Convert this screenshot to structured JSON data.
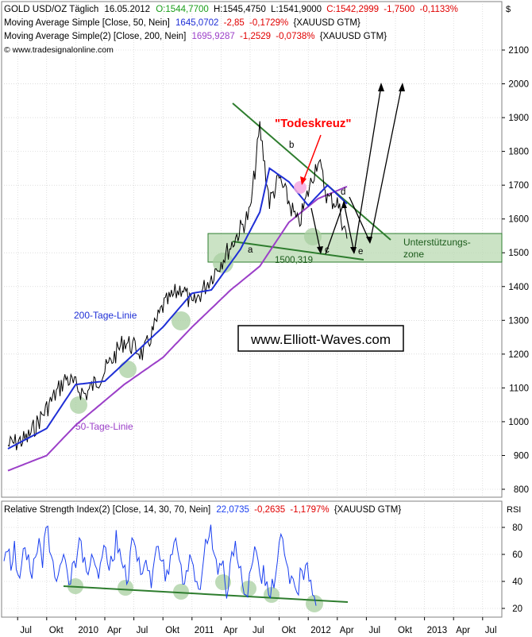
{
  "header": {
    "symbol": "GOLD USD/OZ Täglich",
    "date": "16.05.2012",
    "open": "O:1544,7700",
    "high": "H:1545,4750",
    "low": "L:1541,9000",
    "close": "C:1542,2999",
    "change": "-1,7500",
    "change_pct": "-0,1133%",
    "ma50_label": "Moving Average Simple [Close, 50, Nein]",
    "ma50_value": "1645,0702",
    "ma50_change": "-2,85",
    "ma50_change_pct": "-0,1729%",
    "ma50_source": "{XAUUSD GTM}",
    "ma200_label": "Moving Average Simple(2) [Close, 200, Nein]",
    "ma200_value": "1695,9287",
    "ma200_change": "-1,2529",
    "ma200_change_pct": "-0,0738%",
    "ma200_source": "{XAUUSD GTM}",
    "copyright": "© www.tradesignalonline.com",
    "dollar": "$"
  },
  "rsi_header": {
    "label": "Relative Strength Index(2) [Close, 14, 30, 70, Nein]",
    "value": "22,0735",
    "change": "-0,2635",
    "change_pct": "-1,1797%",
    "source": "{XAUUSD GTM}",
    "axis_label": "RSI"
  },
  "annotations": {
    "death_cross": "\"Todeskreuz\"",
    "support_zone_1": "Unterstützungs-",
    "support_zone_2": "zone",
    "support_level": "1500,319",
    "line_200": "200-Tage-Linie",
    "line_50": "50-Tage-Linie",
    "watermark": "www.Elliott-Waves.com",
    "wave_a": "a",
    "wave_b": "b",
    "wave_c": "c",
    "wave_d": "d",
    "wave_e": "e"
  },
  "colors": {
    "price": "#000000",
    "ma50": "#1f2fd6",
    "ma200": "#9b3fc8",
    "rsi": "#1a3ff0",
    "trend": "#2e7d2e",
    "zone": "#b9d9b1",
    "death_cross": "#ff0000",
    "circles": "#a8cfa0"
  },
  "chart_data": [
    {
      "type": "line",
      "name": "price-panel",
      "ylim": [
        750,
        2150
      ],
      "y_ticks": [
        800,
        900,
        1000,
        1100,
        1200,
        1300,
        1400,
        1500,
        1600,
        1700,
        1800,
        1900,
        2000,
        2100
      ],
      "x_range": [
        "2009-06",
        "2013-08"
      ],
      "grid": true,
      "series": [
        {
          "name": "GOLD USD/OZ",
          "points": [
            [
              "2009-06",
              930
            ],
            [
              "2009-08",
              950
            ],
            [
              "2009-10",
              1040
            ],
            [
              "2009-12",
              1130
            ],
            [
              "2010-02",
              1080
            ],
            [
              "2010-04",
              1150
            ],
            [
              "2010-06",
              1240
            ],
            [
              "2010-08",
              1200
            ],
            [
              "2010-10",
              1340
            ],
            [
              "2010-12",
              1400
            ],
            [
              "2011-01",
              1340
            ],
            [
              "2011-03",
              1430
            ],
            [
              "2011-05",
              1520
            ],
            [
              "2011-07",
              1620
            ],
            [
              "2011-08",
              1870
            ],
            [
              "2011-09",
              1650
            ],
            [
              "2011-10",
              1720
            ],
            [
              "2011-12",
              1580
            ],
            [
              "2012-02",
              1780
            ],
            [
              "2012-03",
              1660
            ],
            [
              "2012-04",
              1650
            ],
            [
              "2012-05",
              1542
            ]
          ]
        },
        {
          "name": "Moving Average Simple [Close, 50, Nein]",
          "points": [
            [
              "2009-06",
              920
            ],
            [
              "2009-10",
              980
            ],
            [
              "2010-01",
              1110
            ],
            [
              "2010-04",
              1120
            ],
            [
              "2010-07",
              1200
            ],
            [
              "2010-10",
              1280
            ],
            [
              "2011-01",
              1380
            ],
            [
              "2011-03",
              1390
            ],
            [
              "2011-06",
              1510
            ],
            [
              "2011-08",
              1620
            ],
            [
              "2011-09",
              1750
            ],
            [
              "2011-11",
              1710
            ],
            [
              "2012-01",
              1640
            ],
            [
              "2012-03",
              1700
            ],
            [
              "2012-05",
              1645
            ]
          ]
        },
        {
          "name": "Moving Average Simple(2) [Close, 200, Nein]",
          "points": [
            [
              "2009-06",
              855
            ],
            [
              "2009-10",
              900
            ],
            [
              "2010-01",
              990
            ],
            [
              "2010-06",
              1110
            ],
            [
              "2010-10",
              1190
            ],
            [
              "2011-01",
              1280
            ],
            [
              "2011-05",
              1390
            ],
            [
              "2011-08",
              1460
            ],
            [
              "2011-11",
              1590
            ],
            [
              "2012-02",
              1660
            ],
            [
              "2012-05",
              1696
            ]
          ]
        }
      ],
      "projection": [
        [
          "2012-05",
          1500
        ],
        [
          "2012-06",
          1640
        ],
        [
          "2012-07",
          1480
        ],
        [
          "2012-09",
          2000
        ],
        [
          "2012-10",
          2000
        ]
      ]
    },
    {
      "type": "line",
      "name": "rsi-panel",
      "ylim": [
        15,
        90
      ],
      "y_ticks": [
        20,
        40,
        60,
        80
      ],
      "grid": true,
      "x_labels": [
        "Jul",
        "Okt",
        "2010",
        "Apr",
        "Jul",
        "Okt",
        "2011",
        "Apr",
        "Jul",
        "Okt",
        "2012",
        "Apr",
        "Jul",
        "Okt",
        "2013",
        "Apr",
        "Jul"
      ],
      "series": [
        {
          "name": "Relative Strength Index(2) [Close, 14, 30, 70, Nein]",
          "values": [
            55,
            62,
            48,
            70,
            45,
            52,
            65,
            60,
            42,
            58,
            72,
            50,
            80,
            62,
            55,
            40,
            52,
            60,
            48,
            38,
            55,
            62,
            70,
            58,
            45,
            60,
            52,
            42,
            58,
            65,
            48,
            55,
            78,
            64,
            50,
            38,
            62,
            70,
            55,
            45,
            52,
            48,
            35,
            58,
            66,
            55,
            40,
            45,
            60,
            72,
            56,
            38,
            48,
            60,
            52,
            40,
            34,
            58,
            68,
            82,
            60,
            45,
            52,
            40,
            35,
            62,
            70,
            50,
            38,
            30,
            46,
            55,
            62,
            45,
            52,
            40,
            28,
            35,
            55,
            75,
            60,
            50,
            44,
            36,
            30,
            48,
            52,
            40,
            30,
            22
          ]
        }
      ]
    }
  ]
}
